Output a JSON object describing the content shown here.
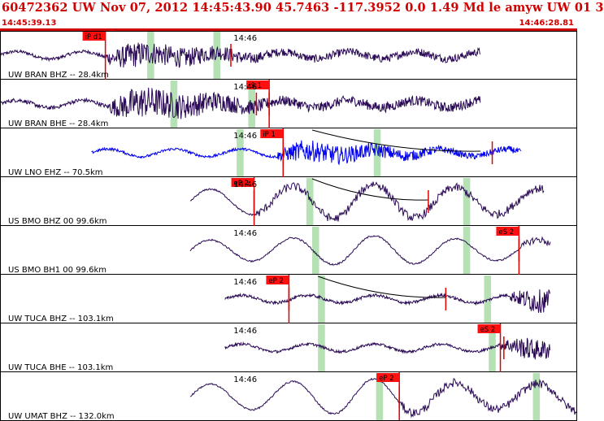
{
  "header": {
    "title": "60472362 UW Nov 07, 2012 14:45:43.90   45.7463 -117.3952  0.0 1.49 Md le amyw UW 01   3",
    "start_time": "14:45:39.13",
    "end_time": "14:46:28.81",
    "bar_color": "#d00000"
  },
  "time_axis": {
    "start_s": 39.13,
    "end_s": 88.81,
    "tick_label": "14:46",
    "tick_s": 60.0
  },
  "traces": [
    {
      "label": "UW BRAN BHZ -- 28.4km",
      "color": "#2a0a55",
      "start_s": 39.13,
      "end_s": 80.5,
      "shape": "noisy",
      "amp": 0.6,
      "onset_s": 48.2,
      "picks": [
        {
          "label": "iP d1",
          "time_s": 48.2
        }
      ],
      "windows": [
        [
          51.8,
          52.4
        ],
        [
          57.5,
          58.1
        ]
      ],
      "marks": [
        59.0
      ],
      "theory": []
    },
    {
      "label": "UW BRAN BHE -- 28.4km",
      "color": "#2a0a55",
      "start_s": 39.13,
      "end_s": 80.5,
      "shape": "noisy",
      "amp": 0.75,
      "onset_s": 48.5,
      "picks": [
        {
          "label": "iS 1",
          "time_s": 62.3
        }
      ],
      "windows": [
        [
          53.8,
          54.4
        ],
        [
          60.5,
          61.1
        ]
      ],
      "marks": [
        61.2,
        62.3
      ],
      "theory": []
    },
    {
      "label": "UW LNO EHZ -- 70.5km",
      "color": "#0000ee",
      "start_s": 47.0,
      "end_s": 84.0,
      "shape": "noisy",
      "amp": 0.5,
      "onset_s": 63.0,
      "picks": [
        {
          "label": "iP 1",
          "time_s": 63.5
        }
      ],
      "windows": [
        [
          59.5,
          60.1
        ],
        [
          71.3,
          71.9
        ]
      ],
      "marks": [
        63.5,
        81.5
      ],
      "theory": [
        [
          66.0,
          80.5
        ]
      ]
    },
    {
      "label": "US BMO BHZ 00 99.6km",
      "color": "#2a0a55",
      "start_s": 55.5,
      "end_s": 86.0,
      "shape": "wave",
      "amp": 0.85,
      "onset_s": 61.0,
      "picks": [
        {
          "label": "eP 2",
          "time_s": 61.0
        }
      ],
      "windows": [
        [
          65.5,
          66.1
        ],
        [
          79.0,
          79.6
        ]
      ],
      "marks": [
        61.0,
        76.0
      ],
      "theory": [
        [
          66.0,
          76.0
        ]
      ]
    },
    {
      "label": "US BMO BH1 00 99.6km",
      "color": "#2a0a55",
      "start_s": 55.5,
      "end_s": 86.5,
      "shape": "wave",
      "amp": 0.7,
      "onset_s": 84.0,
      "picks": [
        {
          "label": "eS 2",
          "time_s": 83.8
        }
      ],
      "windows": [
        [
          66.0,
          66.6
        ],
        [
          79.0,
          79.6
        ]
      ],
      "marks": [
        83.8
      ],
      "theory": []
    },
    {
      "label": "UW TUCA BHZ -- 103.1km",
      "color": "#2a0a55",
      "start_s": 58.5,
      "end_s": 86.5,
      "shape": "noisy",
      "amp": 0.55,
      "onset_s": 83.0,
      "picks": [
        {
          "label": "eP 2",
          "time_s": 64.0
        }
      ],
      "windows": [
        [
          66.5,
          67.1
        ],
        [
          80.8,
          81.4
        ]
      ],
      "marks": [
        64.0,
        77.5
      ],
      "theory": [
        [
          66.5,
          77.5
        ]
      ]
    },
    {
      "label": "UW TUCA BHE -- 103.1km",
      "color": "#2a0a55",
      "start_s": 58.5,
      "end_s": 86.5,
      "shape": "noisy",
      "amp": 0.5,
      "onset_s": 82.2,
      "picks": [
        {
          "label": "eS 2",
          "time_s": 82.2
        }
      ],
      "windows": [
        [
          66.5,
          67.1
        ],
        [
          81.2,
          81.8
        ]
      ],
      "marks": [
        82.5
      ],
      "theory": []
    },
    {
      "label": "UW UMAT BHZ -- 132.0km",
      "color": "#2a0a55",
      "start_s": 55.5,
      "end_s": 88.81,
      "shape": "wave",
      "amp": 0.85,
      "onset_s": 73.5,
      "picks": [
        {
          "label": "eP 2",
          "time_s": 73.5
        }
      ],
      "windows": [
        [
          71.5,
          72.1
        ],
        [
          85.0,
          85.6
        ]
      ],
      "marks": [
        73.5
      ],
      "theory": []
    }
  ]
}
